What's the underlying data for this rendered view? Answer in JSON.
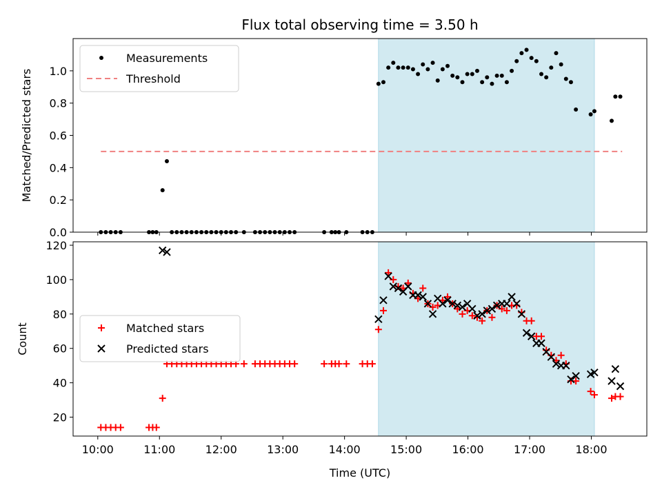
{
  "chart_data": [
    {
      "type": "scatter",
      "title": "Flux total observing time = 3.50 h",
      "ylabel": "Matched/Predicted stars",
      "xlabel": "",
      "xlim": [
        9.6,
        18.9
      ],
      "ylim": [
        0,
        1.2
      ],
      "yticks": [
        0.0,
        0.2,
        0.4,
        0.6,
        0.8,
        1.0
      ],
      "ytick_labels": [
        "0.0",
        "0.2",
        "0.4",
        "0.6",
        "0.8",
        "1.0"
      ],
      "highlight_span": [
        14.55,
        18.05
      ],
      "highlight_color": "#add8e6",
      "legend": {
        "position": "top-left",
        "entries": [
          "Measurements",
          "Threshold"
        ]
      },
      "threshold": {
        "name": "Threshold",
        "value": 0.5,
        "x": [
          10.05,
          18.5
        ],
        "color": "#f08080"
      },
      "series": [
        {
          "name": "Measurements",
          "marker": "dot",
          "color": "#000000",
          "x": [
            10.05,
            10.13,
            10.21,
            10.29,
            10.37,
            10.83,
            10.89,
            10.95,
            11.05,
            11.12,
            11.2,
            11.28,
            11.36,
            11.44,
            11.52,
            11.6,
            11.68,
            11.76,
            11.84,
            11.92,
            12.0,
            12.08,
            12.16,
            12.24,
            12.37,
            12.55,
            12.63,
            12.71,
            12.79,
            12.87,
            12.95,
            13.03,
            13.11,
            13.19,
            13.67,
            13.79,
            13.85,
            13.91,
            14.03,
            14.29,
            14.37,
            14.45,
            14.55,
            14.63,
            14.71,
            14.79,
            14.87,
            14.95,
            15.03,
            15.11,
            15.19,
            15.27,
            15.35,
            15.43,
            15.51,
            15.59,
            15.67,
            15.75,
            15.83,
            15.91,
            15.99,
            16.07,
            16.15,
            16.23,
            16.31,
            16.39,
            16.47,
            16.55,
            16.63,
            16.71,
            16.79,
            16.87,
            16.95,
            17.03,
            17.11,
            17.19,
            17.27,
            17.35,
            17.43,
            17.51,
            17.59,
            17.67,
            17.75,
            17.99,
            18.05,
            18.33,
            18.39,
            18.47
          ],
          "y": [
            0,
            0,
            0,
            0,
            0,
            0,
            0,
            0,
            0.26,
            0.44,
            0,
            0,
            0,
            0,
            0,
            0,
            0,
            0,
            0,
            0,
            0,
            0,
            0,
            0,
            0,
            0,
            0,
            0,
            0,
            0,
            0,
            0,
            0,
            0,
            0,
            0,
            0,
            0,
            0,
            0,
            0,
            0,
            0.92,
            0.93,
            1.02,
            1.05,
            1.02,
            1.02,
            1.02,
            1.01,
            0.98,
            1.04,
            1.01,
            1.05,
            0.94,
            1.01,
            1.03,
            0.97,
            0.96,
            0.93,
            0.98,
            0.98,
            1.0,
            0.93,
            0.96,
            0.92,
            0.97,
            0.97,
            0.93,
            1.0,
            1.06,
            1.11,
            1.13,
            1.08,
            1.06,
            0.98,
            0.96,
            1.02,
            1.11,
            1.04,
            0.95,
            0.93,
            0.76,
            0.73,
            0.75,
            0.69,
            0.84,
            0.84
          ]
        }
      ]
    },
    {
      "type": "scatter",
      "title": "",
      "ylabel": "Count",
      "xlabel": "Time (UTC)",
      "xlim": [
        9.6,
        18.9
      ],
      "ylim": [
        9,
        122
      ],
      "yticks": [
        20,
        40,
        60,
        80,
        100,
        120
      ],
      "ytick_labels": [
        "20",
        "40",
        "60",
        "80",
        "100",
        "120"
      ],
      "xticks": [
        10,
        11,
        12,
        13,
        14,
        15,
        16,
        17,
        18
      ],
      "xtick_labels": [
        "10:00",
        "11:00",
        "12:00",
        "13:00",
        "14:00",
        "15:00",
        "16:00",
        "17:00",
        "18:00"
      ],
      "highlight_span": [
        14.55,
        18.05
      ],
      "highlight_color": "#add8e6",
      "legend": {
        "position": "center-left",
        "entries": [
          "Matched stars",
          "Predicted stars"
        ]
      },
      "series": [
        {
          "name": "Matched stars",
          "marker": "plus",
          "color": "#ff0000",
          "x": [
            10.05,
            10.13,
            10.21,
            10.29,
            10.37,
            10.83,
            10.89,
            10.95,
            11.05,
            11.12,
            11.2,
            11.28,
            11.36,
            11.44,
            11.52,
            11.6,
            11.68,
            11.76,
            11.84,
            11.92,
            12.0,
            12.08,
            12.16,
            12.24,
            12.37,
            12.55,
            12.63,
            12.71,
            12.79,
            12.87,
            12.95,
            13.03,
            13.11,
            13.19,
            13.67,
            13.79,
            13.85,
            13.91,
            14.03,
            14.29,
            14.37,
            14.45,
            14.55,
            14.63,
            14.71,
            14.79,
            14.87,
            14.95,
            15.03,
            15.11,
            15.19,
            15.27,
            15.35,
            15.43,
            15.51,
            15.59,
            15.67,
            15.75,
            15.83,
            15.91,
            15.99,
            16.07,
            16.15,
            16.23,
            16.31,
            16.39,
            16.47,
            16.55,
            16.63,
            16.71,
            16.79,
            16.87,
            16.95,
            17.03,
            17.11,
            17.19,
            17.27,
            17.35,
            17.43,
            17.51,
            17.59,
            17.67,
            17.75,
            17.99,
            18.05,
            18.33,
            18.39,
            18.47
          ],
          "y": [
            14,
            14,
            14,
            14,
            14,
            14,
            14,
            14,
            31,
            51,
            51,
            51,
            51,
            51,
            51,
            51,
            51,
            51,
            51,
            51,
            51,
            51,
            51,
            51,
            51,
            51,
            51,
            51,
            51,
            51,
            51,
            51,
            51,
            51,
            51,
            51,
            51,
            51,
            51,
            51,
            51,
            51,
            71,
            82,
            104,
            100,
            96,
            95,
            98,
            92,
            89,
            95,
            86,
            84,
            85,
            88,
            90,
            86,
            83,
            80,
            82,
            79,
            78,
            76,
            82,
            78,
            85,
            83,
            82,
            85,
            85,
            81,
            76,
            76,
            67,
            67,
            59,
            56,
            53,
            56,
            51,
            41,
            41,
            35,
            33,
            31,
            32,
            32
          ]
        },
        {
          "name": "Predicted stars",
          "marker": "x",
          "color": "#000000",
          "x": [
            11.05,
            11.12,
            14.55,
            14.63,
            14.71,
            14.79,
            14.87,
            14.95,
            15.03,
            15.11,
            15.19,
            15.27,
            15.35,
            15.43,
            15.51,
            15.59,
            15.67,
            15.75,
            15.83,
            15.91,
            15.99,
            16.07,
            16.15,
            16.23,
            16.31,
            16.39,
            16.47,
            16.55,
            16.63,
            16.71,
            16.79,
            16.87,
            16.95,
            17.03,
            17.11,
            17.19,
            17.27,
            17.35,
            17.43,
            17.51,
            17.59,
            17.67,
            17.75,
            17.99,
            18.05,
            18.33,
            18.39,
            18.47
          ],
          "y": [
            117,
            116,
            77,
            88,
            102,
            96,
            95,
            93,
            96,
            91,
            91,
            90,
            86,
            80,
            89,
            86,
            88,
            86,
            85,
            84,
            86,
            83,
            79,
            80,
            82,
            83,
            85,
            86,
            86,
            90,
            86,
            80,
            69,
            67,
            63,
            63,
            58,
            55,
            51,
            50,
            50,
            42,
            44,
            45,
            46,
            41,
            48,
            38
          ]
        }
      ]
    }
  ]
}
